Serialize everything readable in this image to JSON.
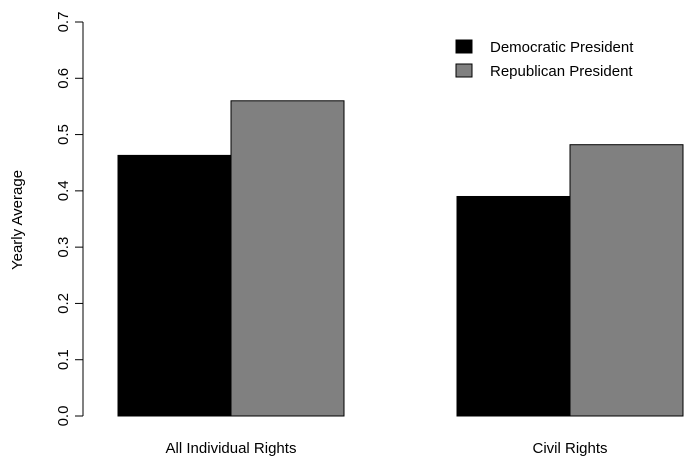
{
  "chart_data": {
    "type": "bar",
    "title": "",
    "xlabel": "",
    "ylabel": "Yearly Average",
    "ylim": [
      0,
      0.7
    ],
    "yticks": [
      "0.0",
      "0.1",
      "0.2",
      "0.3",
      "0.4",
      "0.5",
      "0.6",
      "0.7"
    ],
    "categories": [
      "All Individual Rights",
      "Civil Rights"
    ],
    "series": [
      {
        "name": "Democratic President",
        "color": "#000000",
        "values": [
          0.463,
          0.39
        ]
      },
      {
        "name": "Republican President",
        "color": "#808080",
        "values": [
          0.56,
          0.482
        ]
      }
    ],
    "grid": false,
    "legend": "top-right"
  }
}
